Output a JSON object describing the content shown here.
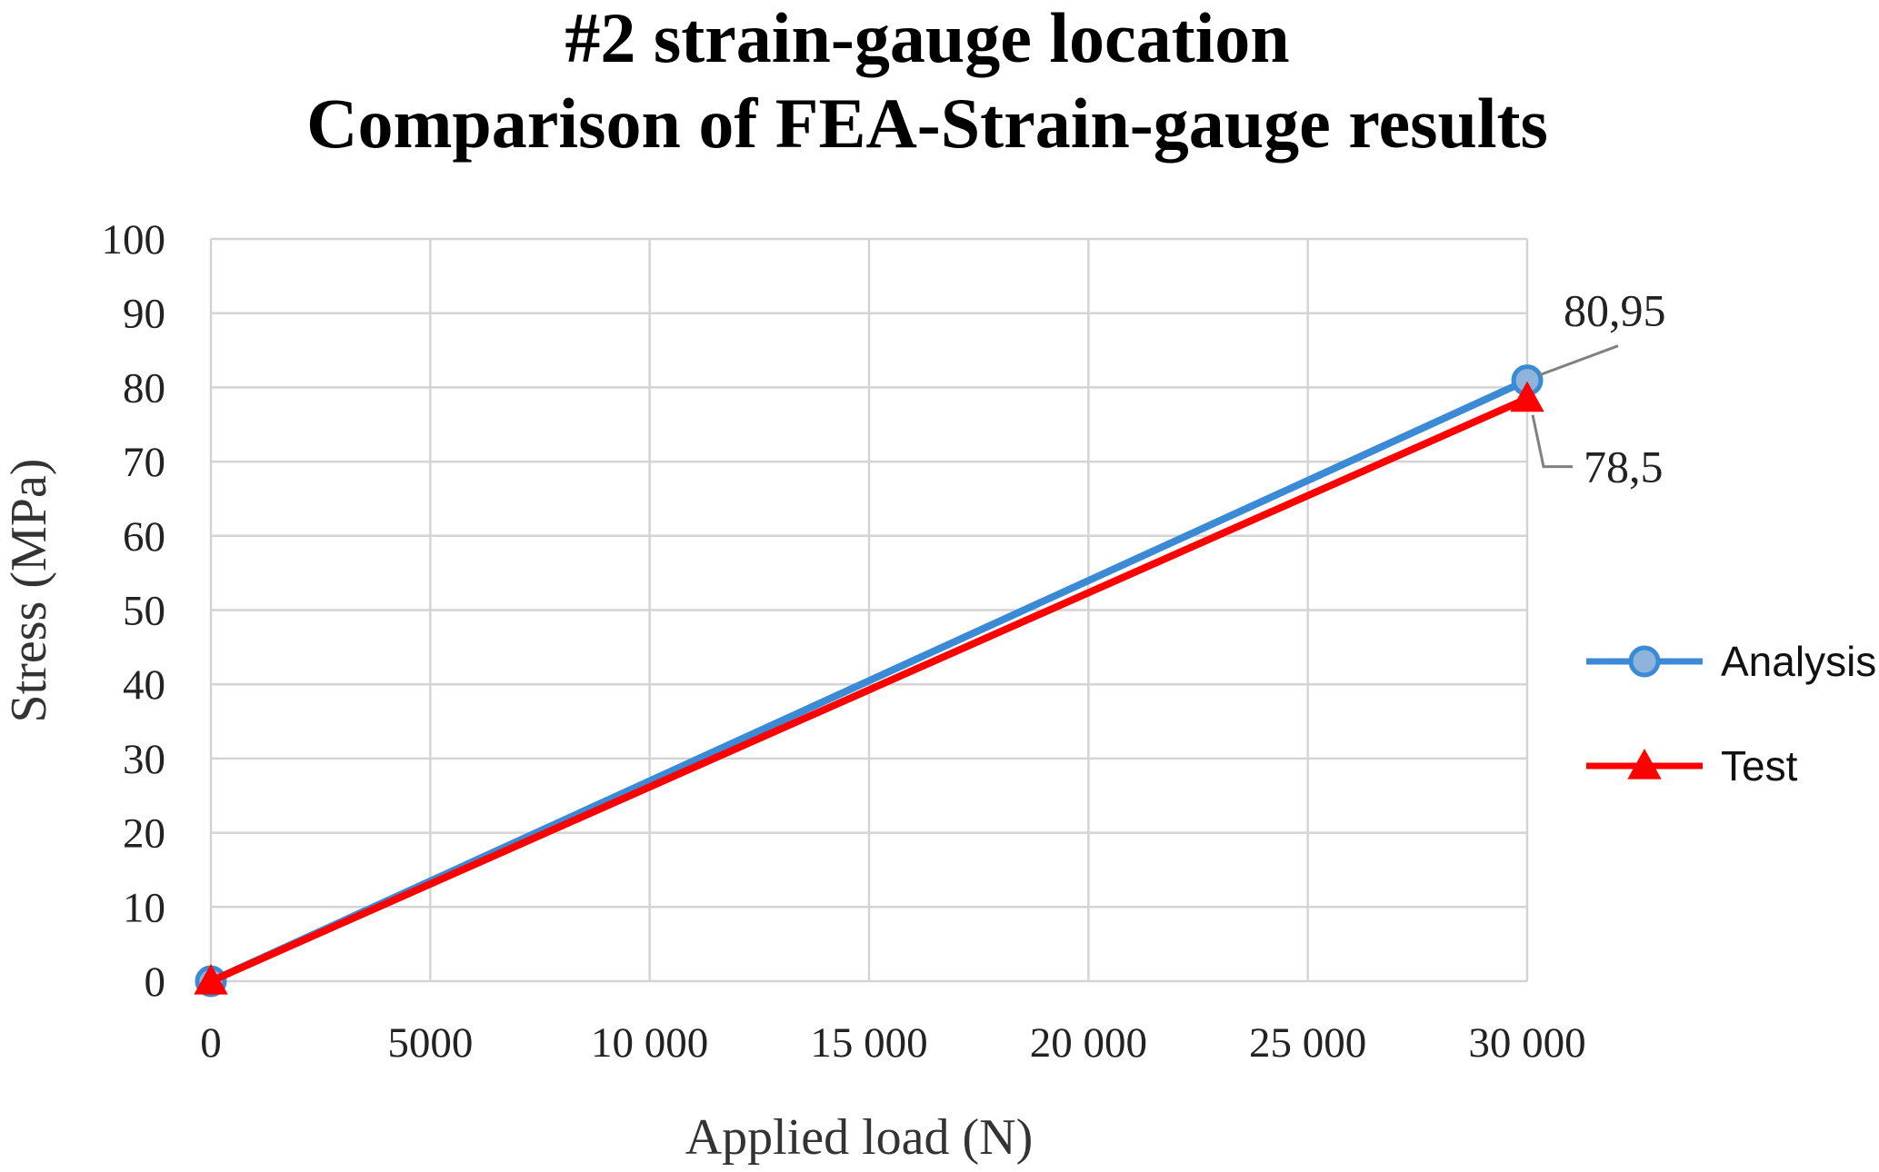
{
  "chart_data": {
    "type": "line",
    "title_lines": [
      "#2 strain-gauge location",
      "Comparison of FEA-Strain-gauge results"
    ],
    "xlabel": "Applied load  (N)",
    "ylabel": "Stress  (MPa)",
    "xlim": [
      0,
      30000
    ],
    "ylim": [
      0,
      100
    ],
    "x_ticks": [
      {
        "value": 0,
        "label": "0"
      },
      {
        "value": 5000,
        "label": "5000"
      },
      {
        "value": 10000,
        "label": "10 000"
      },
      {
        "value": 15000,
        "label": "15 000"
      },
      {
        "value": 20000,
        "label": "20 000"
      },
      {
        "value": 25000,
        "label": "25 000"
      },
      {
        "value": 30000,
        "label": "30 000"
      }
    ],
    "y_ticks": [
      {
        "value": 0,
        "label": "0"
      },
      {
        "value": 10,
        "label": "10"
      },
      {
        "value": 20,
        "label": "20"
      },
      {
        "value": 30,
        "label": "30"
      },
      {
        "value": 40,
        "label": "40"
      },
      {
        "value": 50,
        "label": "50"
      },
      {
        "value": 60,
        "label": "60"
      },
      {
        "value": 70,
        "label": "70"
      },
      {
        "value": 80,
        "label": "80"
      },
      {
        "value": 90,
        "label": "90"
      },
      {
        "value": 100,
        "label": "100"
      }
    ],
    "grid": true,
    "legend_position": "right",
    "series": [
      {
        "name": "Analysis",
        "color": "#3a8ad6",
        "marker": "circle",
        "x": [
          0,
          30000
        ],
        "y": [
          0,
          80.95
        ],
        "end_label": "80,95"
      },
      {
        "name": "Test",
        "color": "#ff0000",
        "marker": "triangle",
        "x": [
          0,
          30000
        ],
        "y": [
          0,
          78.5
        ],
        "end_label": "78,5"
      }
    ]
  }
}
